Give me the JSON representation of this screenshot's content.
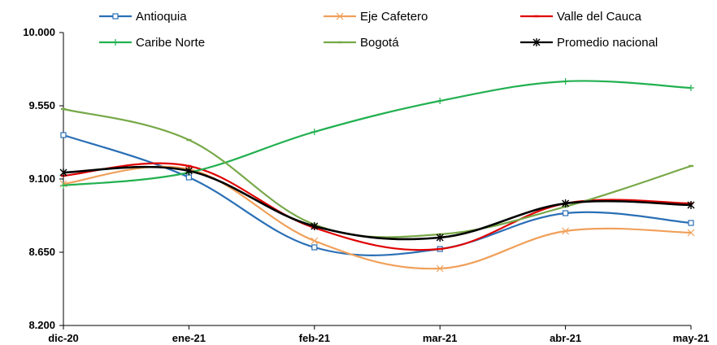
{
  "chart_data": {
    "type": "line",
    "title": "",
    "xlabel": "",
    "ylabel": "",
    "categories": [
      "dic-20",
      "ene-21",
      "feb-21",
      "mar-21",
      "abr-21",
      "may-21"
    ],
    "y_ticks": [
      "8.200",
      "8.650",
      "9.100",
      "9.550",
      "10.000"
    ],
    "ylim": [
      8200,
      10000
    ],
    "grid": false,
    "legend": "top",
    "series": [
      {
        "name": "Antioquia",
        "color": "#2A6FB5",
        "marker": "square",
        "values": [
          9370,
          9110,
          8680,
          8670,
          8890,
          8830
        ]
      },
      {
        "name": "Eje Cafetero",
        "color": "#F0A05A",
        "marker": "x",
        "values": [
          9070,
          9160,
          8720,
          8550,
          8780,
          8770
        ]
      },
      {
        "name": "Valle del Cauca",
        "color": "#E00000",
        "marker": "dash",
        "values": [
          9120,
          9180,
          8800,
          8670,
          8950,
          8950
        ]
      },
      {
        "name": "Caribe Norte",
        "color": "#22B050",
        "marker": "plus",
        "values": [
          9060,
          9140,
          9390,
          9580,
          9700,
          9660
        ]
      },
      {
        "name": "Bogotá",
        "color": "#77A848",
        "marker": "dash",
        "values": [
          9530,
          9340,
          8820,
          8760,
          8930,
          9180
        ]
      },
      {
        "name": "Promedio nacional",
        "color": "#000000",
        "marker": "star",
        "values": [
          9140,
          9150,
          8810,
          8740,
          8950,
          8940
        ]
      }
    ]
  }
}
